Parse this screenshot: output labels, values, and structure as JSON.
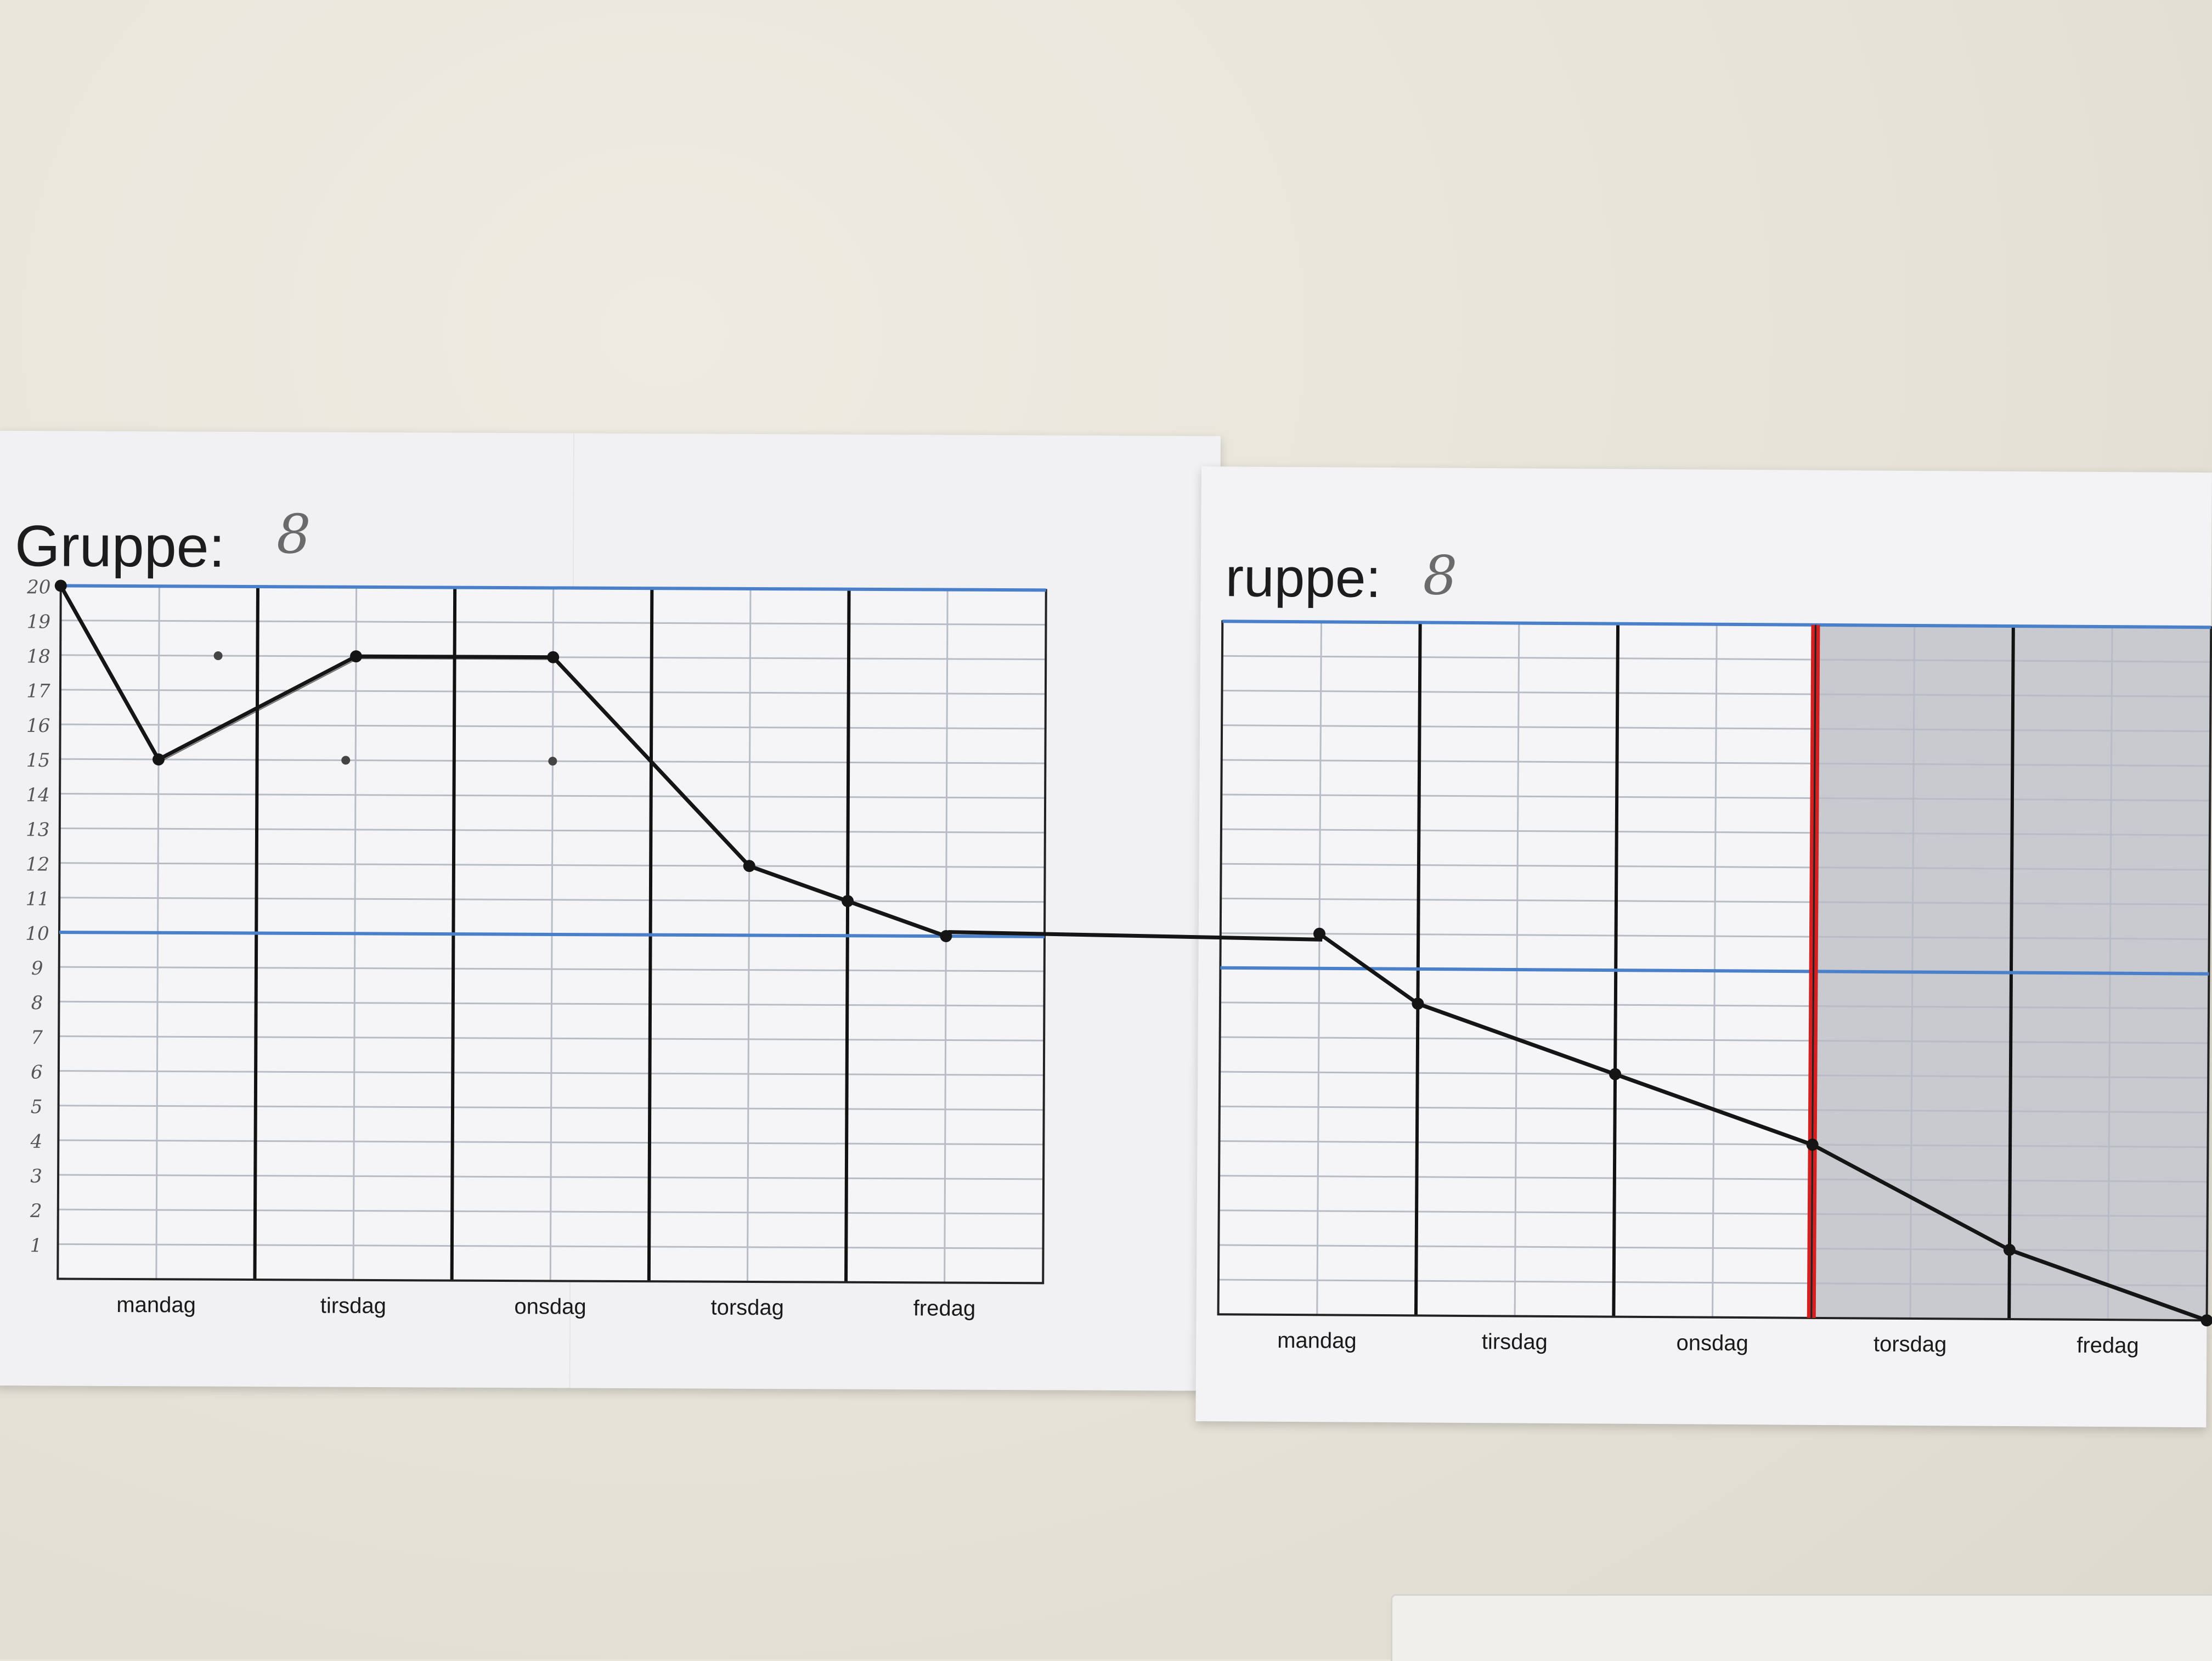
{
  "sheets": [
    {
      "title_text": "Gruppe:",
      "group_number": "8"
    },
    {
      "title_text": "ruppe:",
      "group_number": "8"
    }
  ],
  "colors": {
    "ink": "#151515",
    "blue_line": "#4a7fc9",
    "grid": "#b8bcc6",
    "red_line": "#d42020",
    "shaded": "#c9c9d0"
  },
  "chart_data": [
    {
      "type": "line",
      "title": "",
      "xlabel": "",
      "ylabel": "",
      "categories": [
        "mandag",
        "tirsdag",
        "onsdag",
        "torsdag",
        "fredag"
      ],
      "y_tick_labels": [
        "1",
        "2",
        "3",
        "4",
        "5",
        "6",
        "7",
        "8",
        "9",
        "10",
        "11",
        "12",
        "13",
        "14",
        "15",
        "16",
        "17",
        "18",
        "19",
        "20"
      ],
      "ylim": [
        0,
        20
      ],
      "grid": true,
      "reference_lines_y": [
        20,
        10
      ],
      "series": [
        {
          "points": [
            {
              "x": 0.0,
              "y": 20
            },
            {
              "x": 0.5,
              "y": 15
            },
            {
              "x": 1.5,
              "y": 18
            },
            {
              "x": 2.5,
              "y": 18
            },
            {
              "x": 3.5,
              "y": 12
            },
            {
              "x": 4.0,
              "y": 11
            },
            {
              "x": 4.5,
              "y": 10
            }
          ]
        }
      ],
      "stray_dots": [
        {
          "x": 0.8,
          "y": 18
        },
        {
          "x": 1.45,
          "y": 15
        },
        {
          "x": 2.5,
          "y": 15
        }
      ]
    },
    {
      "type": "line",
      "title": "",
      "xlabel": "",
      "ylabel": "",
      "categories": [
        "mandag",
        "tirsdag",
        "onsdag",
        "torsdag",
        "fredag"
      ],
      "ylim": [
        0,
        20
      ],
      "grid": true,
      "reference_lines_y": [
        20,
        10
      ],
      "marker_line_x": 3.0,
      "shaded_x_range": [
        3.0,
        5.0
      ],
      "series": [
        {
          "points": [
            {
              "x": 0.5,
              "y": 11
            },
            {
              "x": 1.0,
              "y": 9
            },
            {
              "x": 2.0,
              "y": 7
            },
            {
              "x": 3.0,
              "y": 5
            },
            {
              "x": 4.0,
              "y": 2
            },
            {
              "x": 5.0,
              "y": 0
            }
          ]
        }
      ],
      "connector_from_previous": true
    }
  ]
}
